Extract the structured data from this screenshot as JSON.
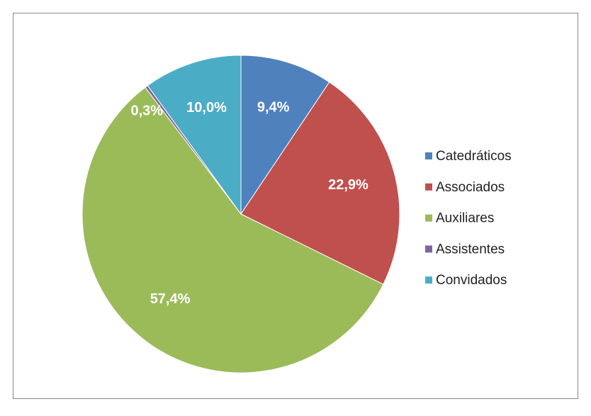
{
  "chart_data": {
    "type": "pie",
    "categories": [
      "Catedráticos",
      "Associados",
      "Auxiliares",
      "Assistentes",
      "Convidados"
    ],
    "values": [
      9.4,
      22.9,
      57.4,
      0.3,
      10.0
    ],
    "value_labels": [
      "9,4%",
      "22,9%",
      "57,4%",
      "0,3%",
      "10,0%"
    ],
    "colors": [
      "#4f81bd",
      "#c0504d",
      "#9bbb59",
      "#8064a2",
      "#4bacc6"
    ],
    "legend": "right"
  }
}
